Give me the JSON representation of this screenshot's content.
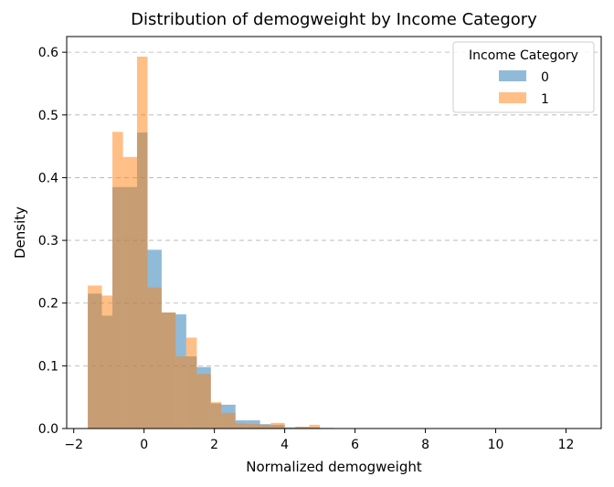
{
  "chart_data": {
    "type": "histogram",
    "title": "Distribution of demogweight by Income Category",
    "xlabel": "Normalized demogweight",
    "ylabel": "Density",
    "xlim": [
      -2.2,
      13.0
    ],
    "ylim": [
      0,
      0.625
    ],
    "xticks": [
      -2,
      0,
      2,
      4,
      6,
      8,
      10,
      12
    ],
    "yticks": [
      0.0,
      0.1,
      0.2,
      0.3,
      0.4,
      0.5,
      0.6
    ],
    "xtick_labels": [
      "−2",
      "0",
      "2",
      "4",
      "6",
      "8",
      "10",
      "12"
    ],
    "ytick_labels": [
      "0.0",
      "0.1",
      "0.2",
      "0.3",
      "0.4",
      "0.5",
      "0.6"
    ],
    "grid": "y-dashed",
    "legend_title": "Income Category",
    "legend_position": "top-right",
    "bin_edges": [
      -1.6,
      -1.2,
      -0.9,
      -0.6,
      -0.2,
      0.1,
      0.5,
      0.9,
      1.2,
      1.5,
      1.9,
      2.2,
      2.6,
      2.9,
      3.3,
      3.6,
      4.0,
      4.3,
      4.7,
      5.0,
      5.4
    ],
    "series": [
      {
        "name": "0",
        "color": "#1f77b4",
        "values": [
          0.215,
          0.18,
          0.385,
          0.385,
          0.472,
          0.285,
          0.185,
          0.182,
          0.115,
          0.098,
          0.04,
          0.038,
          0.013,
          0.013,
          0.007,
          0.006,
          0.002,
          0.002,
          0.002,
          0.001
        ]
      },
      {
        "name": "1",
        "color": "#ff7f0e",
        "values": [
          0.228,
          0.212,
          0.473,
          0.433,
          0.593,
          0.225,
          0.185,
          0.115,
          0.145,
          0.087,
          0.042,
          0.025,
          0.008,
          0.007,
          0.006,
          0.009,
          0.0,
          0.003,
          0.006,
          0.0
        ]
      }
    ]
  }
}
